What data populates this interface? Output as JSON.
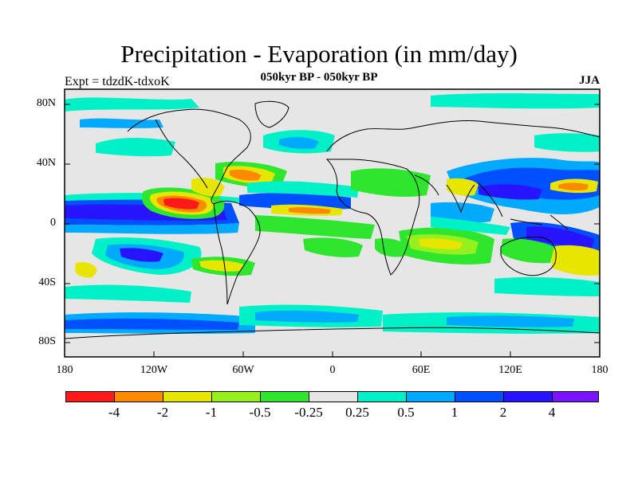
{
  "header": {
    "title": "Precipitation - Evaporation (in mm/day)",
    "subtitle": "050kyr BP - 050kyr BP",
    "expt": "Expt = tdzdK-tdxoK",
    "season": "JJA"
  },
  "axes": {
    "y_ticks": [
      "80N",
      "40N",
      "0",
      "40S",
      "80S"
    ],
    "x_ticks": [
      "180",
      "120W",
      "60W",
      "0",
      "60E",
      "120E",
      "180"
    ]
  },
  "colorbar": {
    "colors": [
      "#ff1a1a",
      "#ff8a00",
      "#e6e600",
      "#96f01e",
      "#2ee62e",
      "#e6e6e6",
      "#00f0c8",
      "#00aaff",
      "#0050ff",
      "#2814ff",
      "#7a14ff"
    ],
    "labels": [
      "-4",
      "-2",
      "-1",
      "-0.5",
      "-0.25",
      "0.25",
      "0.5",
      "1",
      "2",
      "4"
    ]
  },
  "colors": {
    "background": "#e6e6e6",
    "coastline": "#000000"
  }
}
